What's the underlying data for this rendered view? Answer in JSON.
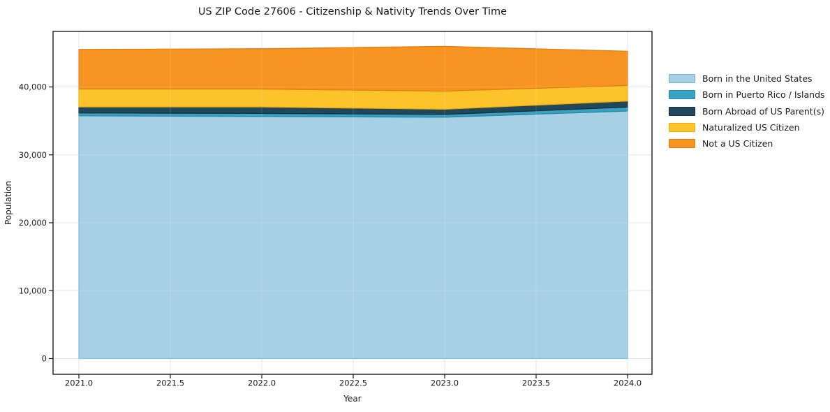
{
  "header": {
    "title": "US ZIP Code 27606 - Citizenship & Nativity Trends Over Time"
  },
  "chart_data": {
    "type": "area",
    "title": "US ZIP Code 27606 - Citizenship & Nativity Trends Over Time",
    "xlabel": "Year",
    "ylabel": "Population",
    "x": [
      2021,
      2022,
      2023,
      2024
    ],
    "x_ticks": [
      2021.0,
      2021.5,
      2022.0,
      2022.5,
      2023.0,
      2023.5,
      2024.0
    ],
    "x_tick_labels": [
      "2021.0",
      "2021.5",
      "2022.0",
      "2022.5",
      "2023.0",
      "2023.5",
      "2024.0"
    ],
    "y_ticks": [
      0,
      10000,
      20000,
      30000,
      40000
    ],
    "y_tick_labels": [
      "0",
      "10,000",
      "20,000",
      "30,000",
      "40,000"
    ],
    "xlim": [
      2020.86,
      2024.14
    ],
    "ylim": [
      -2350,
      48150
    ],
    "grid": true,
    "legend_position": "right-outside",
    "series": [
      {
        "name": "Born in the United States",
        "color": "#a8d0e4",
        "edge": "#74b2d0",
        "values": [
          35750,
          35650,
          35550,
          36450
        ]
      },
      {
        "name": "Born in Puerto Rico / Islands",
        "color": "#39a1c1",
        "edge": "#2b89a6",
        "values": [
          420,
          450,
          410,
          580
        ]
      },
      {
        "name": "Born Abroad of US Parent(s)",
        "color": "#21485a",
        "edge": "#152f3c",
        "values": [
          890,
          960,
          760,
          890
        ]
      },
      {
        "name": "Naturalized US Citizen",
        "color": "#fcc32b",
        "edge": "#eaab10",
        "values": [
          2630,
          2630,
          2670,
          2300
        ]
      },
      {
        "name": "Not a US Citizen",
        "color": "#f79320",
        "edge": "#e07e0f",
        "values": [
          5830,
          5930,
          6580,
          5030
        ]
      }
    ],
    "totals": [
      45520,
      45620,
      45970,
      45250
    ],
    "colors": {
      "background": "#ffffff",
      "grid": "#e1e1e1",
      "spine": "#1a1a1a",
      "text": "#1a1a1a"
    }
  }
}
